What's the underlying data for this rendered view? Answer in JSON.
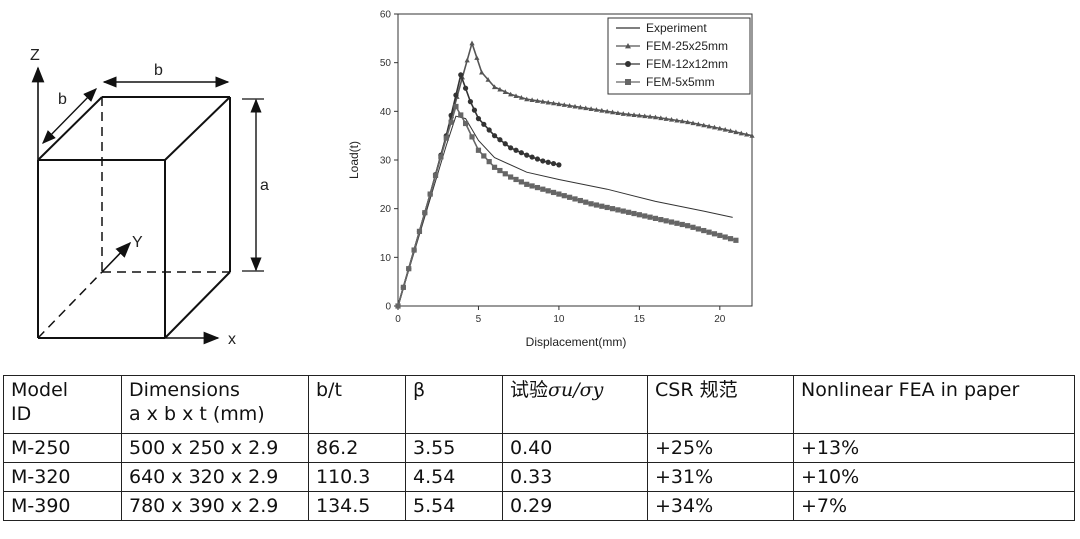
{
  "diagram": {
    "labels": {
      "z": "Z",
      "b_side": "b",
      "b_top": "b",
      "a": "a",
      "y": "Y",
      "x": "x"
    }
  },
  "chart_data": {
    "type": "line",
    "title": "",
    "xlabel": "Displacement(mm)",
    "ylabel": "Load(t)",
    "xlim": [
      0,
      22
    ],
    "ylim": [
      0,
      60
    ],
    "xticks": [
      0,
      5,
      10,
      15,
      20
    ],
    "yticks": [
      0,
      10,
      20,
      30,
      40,
      50,
      60
    ],
    "legend_position": "top-right",
    "series": [
      {
        "name": "Experiment",
        "marker": "none",
        "color": "#333333",
        "x": [
          0,
          1,
          2,
          3,
          3.6,
          4.2,
          5,
          6,
          8,
          10,
          13,
          16,
          19,
          20.8
        ],
        "y": [
          0,
          11,
          22,
          33,
          39,
          38.5,
          34,
          30.5,
          27.5,
          26,
          24,
          21.5,
          19.5,
          18.2
        ]
      },
      {
        "name": "FEM-25x25mm",
        "marker": "triangle",
        "color": "#555555",
        "x": [
          0,
          1,
          2,
          3,
          4,
          4.6,
          5.2,
          6,
          7,
          8,
          10,
          12,
          14,
          16,
          18,
          20,
          22
        ],
        "y": [
          0,
          11.5,
          23,
          35,
          47,
          54,
          48,
          45,
          43.5,
          42.5,
          41.5,
          40.5,
          39.5,
          38.8,
          37.8,
          36.5,
          35
        ]
      },
      {
        "name": "FEM-12x12mm",
        "marker": "circle",
        "color": "#333333",
        "x": [
          0,
          1,
          2,
          3,
          3.9,
          4.5,
          5,
          6,
          7,
          8,
          9,
          10
        ],
        "y": [
          0,
          11.5,
          23,
          35,
          47.5,
          42,
          38.5,
          35,
          32.5,
          31,
          29.8,
          29
        ]
      },
      {
        "name": "FEM-5x5mm",
        "marker": "square",
        "color": "#666666",
        "x": [
          0,
          1,
          2,
          3,
          3.6,
          4.2,
          5,
          6,
          7,
          8,
          10,
          12,
          14,
          16,
          18,
          20,
          21
        ],
        "y": [
          0,
          11.5,
          23,
          34.5,
          41,
          37.5,
          32,
          28.5,
          26.5,
          25,
          23,
          21,
          19.5,
          18,
          16.5,
          14.5,
          13.5
        ]
      }
    ]
  },
  "table": {
    "headers": {
      "model_line1": "Model",
      "model_line2": "ID",
      "dims_line1": "Dimensions",
      "dims_line2": "a x b x t (mm)",
      "bt": "b/t",
      "beta": "β",
      "exp_prefix": "试验",
      "exp_formula": "σu/σy",
      "csr": "CSR 规范",
      "fea": "Nonlinear FEA in paper"
    },
    "rows": [
      {
        "id": "M-250",
        "dims": "500 x 250 x 2.9",
        "bt": "86.2",
        "beta": "3.55",
        "ratio": "0.40",
        "csr": "+25%",
        "fea": "+13%"
      },
      {
        "id": "M-320",
        "dims": "640 x 320 x 2.9",
        "bt": "110.3",
        "beta": "4.54",
        "ratio": "0.33",
        "csr": "+31%",
        "fea": "+10%"
      },
      {
        "id": "M-390",
        "dims": "780 x 390 x 2.9",
        "bt": "134.5",
        "beta": "5.54",
        "ratio": "0.29",
        "csr": "+34%",
        "fea": "+7%"
      }
    ]
  }
}
